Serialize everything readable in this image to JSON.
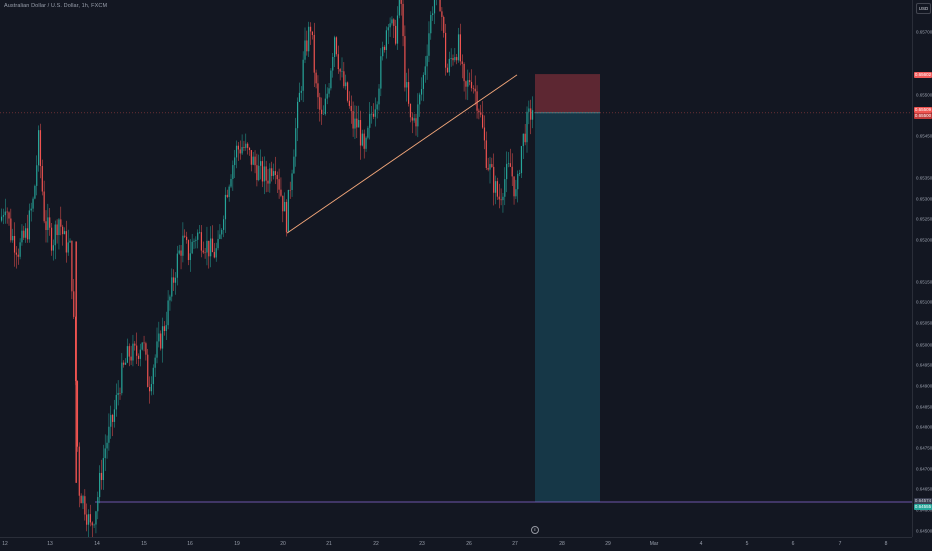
{
  "header": {
    "title": "Australian Dollar / U.S. Dollar, 1h, FXCM"
  },
  "currency_button": {
    "label": "USD"
  },
  "price_axis": {
    "ticks": [
      "0.65700",
      "0.65600",
      "0.65500",
      "0.65450",
      "0.65350",
      "0.65300",
      "0.65250",
      "0.65200",
      "0.65150",
      "0.65100",
      "0.65050",
      "0.65000",
      "0.64950",
      "0.64900",
      "0.64850",
      "0.64800",
      "0.64750",
      "0.64700",
      "0.64650",
      "0.64600",
      "0.64500"
    ],
    "labels": {
      "take_profit": "0.65602",
      "current_price": "0.65509",
      "current_price_sub": "0.65500",
      "stop_loss": "0.64574",
      "stop_loss_sub": "0.64555"
    }
  },
  "time_axis": {
    "ticks": [
      "12",
      "13",
      "14",
      "15",
      "16",
      "19",
      "20",
      "21",
      "22",
      "23",
      "26",
      "27",
      "28",
      "29",
      "Mar",
      "4",
      "5",
      "6",
      "7",
      "8"
    ]
  },
  "event_marker": {
    "label": "E"
  },
  "colors": {
    "background": "#131722",
    "bull": "#26a69a",
    "bear": "#ef5350",
    "trendline": "#f4a77a",
    "stop_zone": "#6b2a35",
    "target_zone": "#16394a",
    "horizontal_line": "#8e6ad9",
    "current_price_label": "#ef5350",
    "take_profit_label": "#f05c5c",
    "stop_label": "#7a5bd4",
    "stop_sub_label": "#26a69a"
  },
  "chart_data": {
    "type": "candlestick",
    "symbol": "AUDUSD",
    "timeframe": "1h",
    "ylim": [
      0.6449,
      0.6578
    ],
    "trendline": {
      "from": {
        "x": "Feb 20",
        "y": 0.6522
      },
      "to": {
        "x": "Feb 27",
        "y": 0.656
      }
    },
    "position": {
      "type": "long",
      "entry": 0.65509,
      "target": 0.65602,
      "stop": 0.64574
    },
    "horizontal_line": 0.64574
  }
}
